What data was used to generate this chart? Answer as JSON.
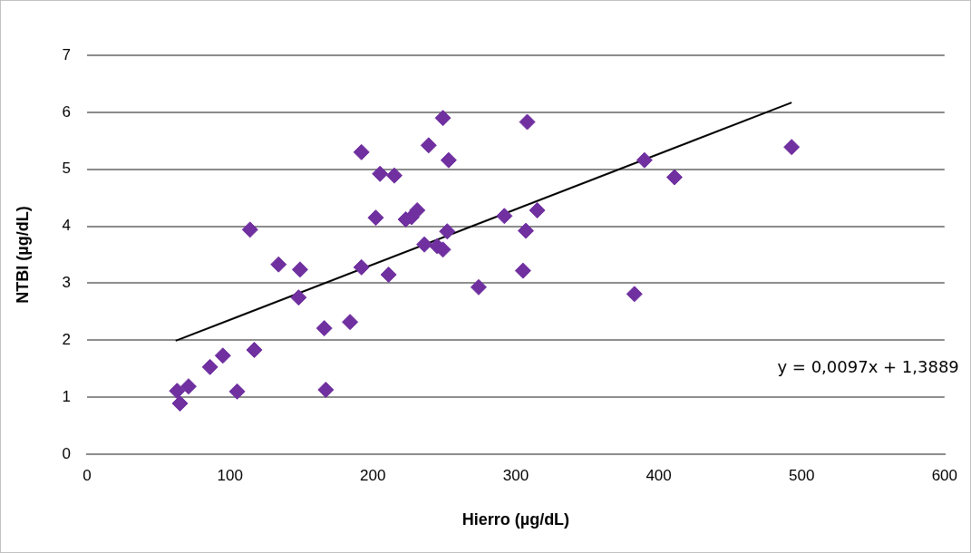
{
  "chart_data": {
    "type": "scatter",
    "xlabel": "Hierro (µg/dL)",
    "ylabel": "NTBI (µg/dL)",
    "xlim": [
      0,
      600
    ],
    "xticks": [
      0,
      100,
      200,
      300,
      400,
      500,
      600
    ],
    "ylim": [
      0,
      7
    ],
    "yticks": [
      0,
      1,
      2,
      3,
      4,
      5,
      6,
      7
    ],
    "grid": "y",
    "legend": false,
    "marker": "diamond",
    "annotations": [
      "y = 0,0097x + 1,3889"
    ],
    "series": [
      {
        "color": "#7030a0",
        "x": [
          63,
          65,
          71,
          86,
          95,
          105,
          114,
          117,
          134,
          149,
          148,
          166,
          167,
          184,
          192,
          192,
          202,
          205,
          211,
          215,
          223,
          227,
          231,
          236,
          239,
          245,
          249,
          249,
          252,
          253,
          274,
          292,
          305,
          307,
          308,
          315,
          390,
          383,
          411,
          493
        ],
        "values": [
          1.11,
          0.89,
          1.19,
          1.53,
          1.73,
          1.1,
          3.94,
          1.83,
          3.33,
          3.24,
          2.75,
          2.21,
          1.13,
          2.32,
          5.3,
          3.28,
          4.15,
          4.92,
          3.15,
          4.89,
          4.12,
          4.16,
          4.28,
          3.68,
          5.42,
          3.65,
          3.59,
          5.9,
          3.91,
          5.16,
          2.93,
          4.18,
          3.22,
          3.92,
          5.83,
          4.28,
          5.16,
          2.81,
          4.86,
          5.39
        ]
      },
      {
        "type": "line",
        "color": "#000000",
        "x": [
          62,
          493
        ],
        "values": [
          1.99,
          6.17
        ],
        "marker": "none"
      }
    ]
  }
}
